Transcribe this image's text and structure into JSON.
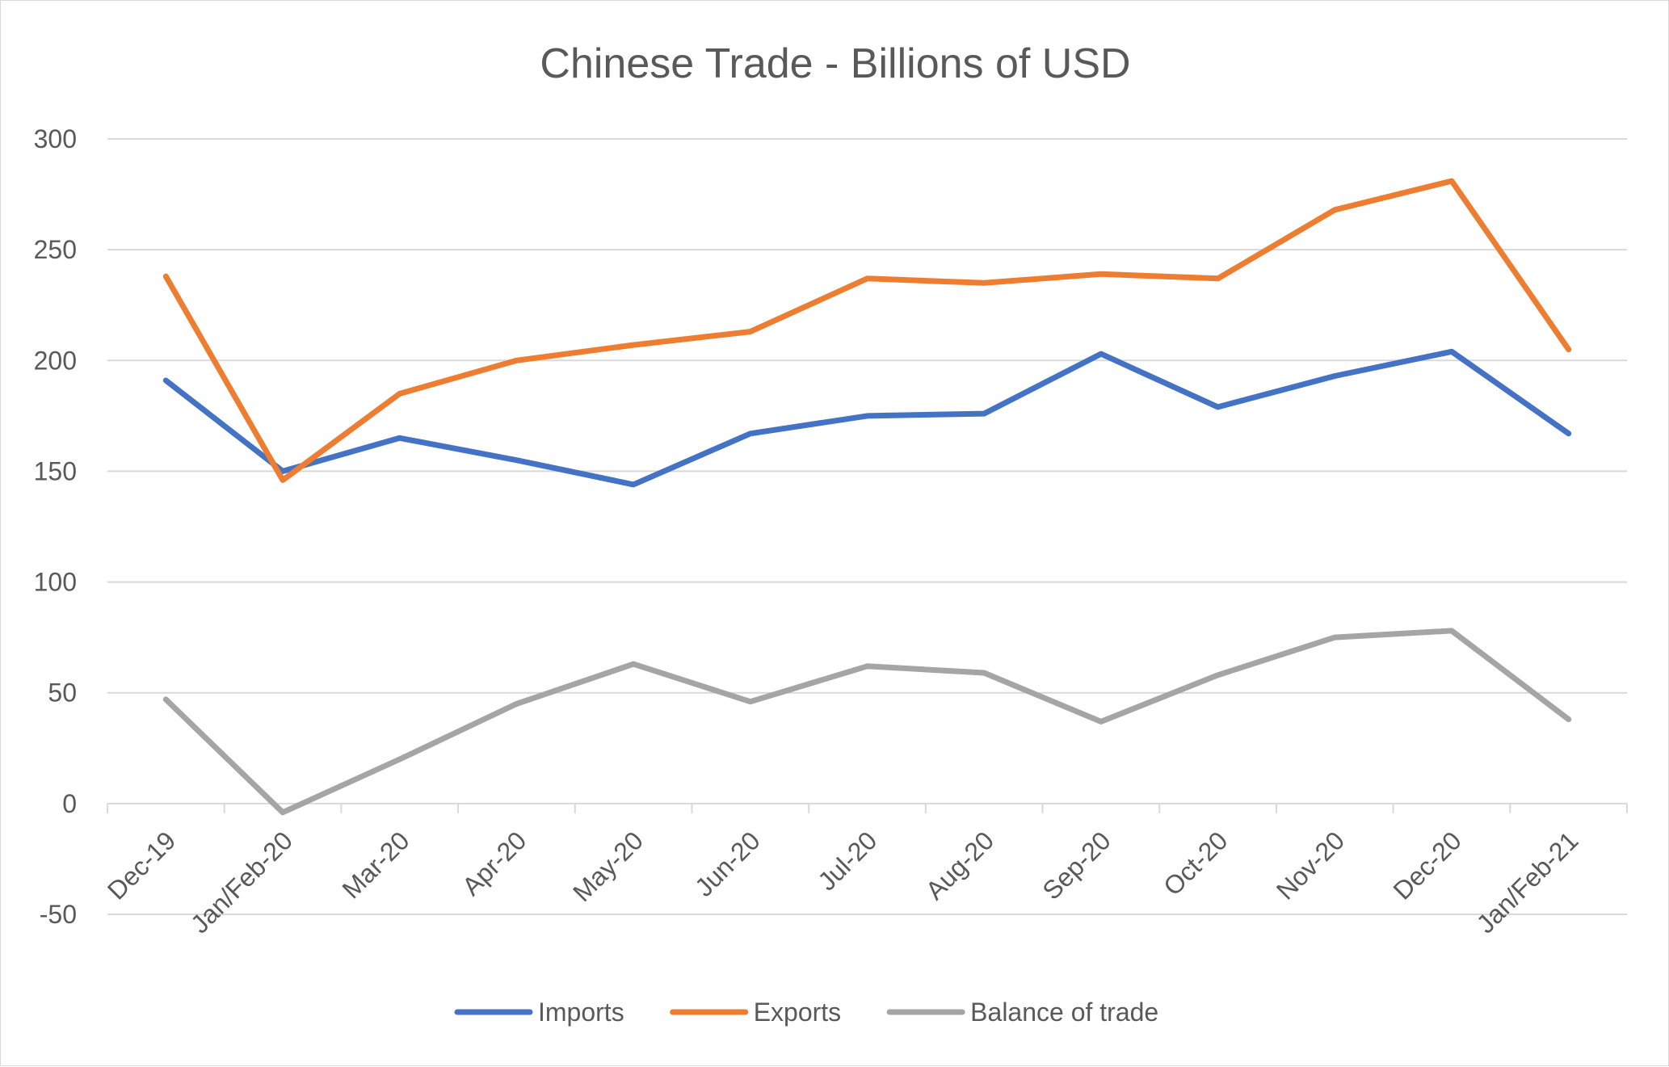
{
  "chart_data": {
    "type": "line",
    "title": "Chinese Trade - Billions of USD",
    "xlabel": "",
    "ylabel": "",
    "categories": [
      "Dec-19",
      "Jan/Feb-20",
      "Mar-20",
      "Apr-20",
      "May-20",
      "Jun-20",
      "Jul-20",
      "Aug-20",
      "Sep-20",
      "Oct-20",
      "Nov-20",
      "Dec-20",
      "Jan/Feb-21"
    ],
    "ylim": [
      -50,
      300
    ],
    "yticks": [
      "-50",
      "0",
      "50",
      "100",
      "150",
      "200",
      "250",
      "300"
    ],
    "grid": true,
    "legend_position": "bottom",
    "series": [
      {
        "name": "Imports",
        "color": "#4472c4",
        "values": [
          191,
          150,
          165,
          155,
          144,
          167,
          175,
          176,
          203,
          179,
          193,
          204,
          167
        ]
      },
      {
        "name": "Exports",
        "color": "#ed7d31",
        "values": [
          238,
          146,
          185,
          200,
          207,
          213,
          237,
          235,
          239,
          237,
          268,
          281,
          205
        ]
      },
      {
        "name": "Balance of trade",
        "color": "#a5a5a5",
        "values": [
          47,
          -4,
          20,
          45,
          63,
          46,
          62,
          59,
          37,
          58,
          75,
          78,
          38
        ]
      }
    ]
  }
}
